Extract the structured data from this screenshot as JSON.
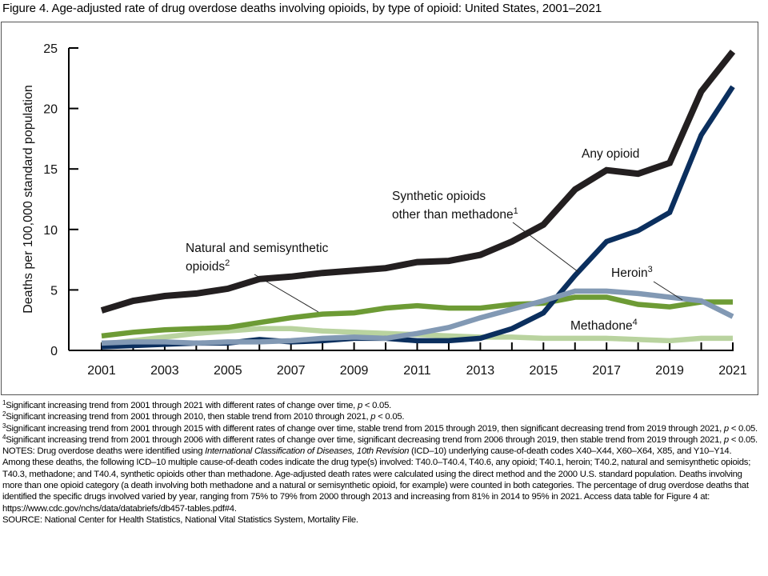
{
  "figure": {
    "title": "Figure 4. Age-adjusted rate of drug overdose deaths involving opioids, by type of opioid: United States, 2001–2021"
  },
  "chart_data": {
    "type": "line",
    "title": "Figure 4. Age-adjusted rate of drug overdose deaths involving opioids, by type of opioid: United States, 2001–2021",
    "xlabel": "",
    "ylabel": "Deaths per 100,000 standard population",
    "x": [
      2001,
      2002,
      2003,
      2004,
      2005,
      2006,
      2007,
      2008,
      2009,
      2010,
      2011,
      2012,
      2013,
      2014,
      2015,
      2016,
      2017,
      2018,
      2019,
      2020,
      2021
    ],
    "xlim": [
      2001,
      2021
    ],
    "ylim": [
      0,
      25
    ],
    "x_ticks": [
      2001,
      2003,
      2005,
      2007,
      2009,
      2011,
      2013,
      2015,
      2017,
      2019,
      2021
    ],
    "y_ticks": [
      0,
      5,
      10,
      15,
      20,
      25
    ],
    "grid": false,
    "legend": "none (direct labels)",
    "series": [
      {
        "id": "methadone",
        "name": "Methadone",
        "footnote": "4",
        "color": "#b9d39f",
        "values": [
          0.5,
          0.8,
          1.1,
          1.4,
          1.6,
          1.8,
          1.8,
          1.6,
          1.5,
          1.4,
          1.3,
          1.2,
          1.1,
          1.1,
          1.0,
          1.0,
          1.0,
          0.9,
          0.8,
          1.0,
          1.0
        ]
      },
      {
        "id": "natural",
        "name": "Natural and semisynthetic opioids",
        "footnote": "2",
        "color": "#6d9b35",
        "values": [
          1.2,
          1.5,
          1.7,
          1.8,
          1.9,
          2.3,
          2.7,
          3.0,
          3.1,
          3.5,
          3.7,
          3.5,
          3.5,
          3.8,
          3.9,
          4.4,
          4.4,
          3.8,
          3.6,
          4.0,
          4.0
        ]
      },
      {
        "id": "synthetic",
        "name": "Synthetic opioids other than methadone",
        "footnote": "1",
        "color": "#0b2f5e",
        "values": [
          0.3,
          0.4,
          0.5,
          0.6,
          0.6,
          0.9,
          0.7,
          0.8,
          1.0,
          1.0,
          0.8,
          0.8,
          1.0,
          1.8,
          3.1,
          6.2,
          9.0,
          9.9,
          11.4,
          17.8,
          21.8
        ]
      },
      {
        "id": "heroin",
        "name": "Heroin",
        "footnote": "3",
        "color": "#8299b4",
        "values": [
          0.6,
          0.7,
          0.7,
          0.6,
          0.7,
          0.7,
          0.8,
          1.0,
          1.1,
          1.0,
          1.4,
          1.9,
          2.7,
          3.4,
          4.1,
          4.9,
          4.9,
          4.7,
          4.4,
          4.1,
          2.8
        ]
      },
      {
        "id": "any",
        "name": "Any opioid",
        "footnote": "",
        "color": "#231f20",
        "values": [
          3.3,
          4.1,
          4.5,
          4.7,
          5.1,
          5.9,
          6.1,
          6.4,
          6.6,
          6.8,
          7.3,
          7.4,
          7.9,
          9.0,
          10.4,
          13.3,
          14.9,
          14.6,
          15.5,
          21.4,
          24.7
        ]
      }
    ],
    "annotations": [
      {
        "series": "any",
        "lines": [
          "Any opioid"
        ],
        "sup": ""
      },
      {
        "series": "synthetic",
        "lines": [
          "Synthetic opioids",
          "other than methadone"
        ],
        "sup": "1"
      },
      {
        "series": "natural",
        "lines": [
          "Natural and semisynthetic",
          "opioids"
        ],
        "sup": "2"
      },
      {
        "series": "heroin",
        "lines": [
          "Heroin"
        ],
        "sup": "3"
      },
      {
        "series": "methadone",
        "lines": [
          "Methadone"
        ],
        "sup": "4"
      }
    ]
  },
  "footnotes": [
    {
      "marker": "1",
      "text": "Significant increasing trend from 2001 through 2021 with different rates of change over time, ",
      "p_text": "p",
      "tail": " < 0.05."
    },
    {
      "marker": "2",
      "text": "Significant increasing trend from 2001 through 2010, then stable trend from 2010 through 2021, ",
      "p_text": "p",
      "tail": " < 0.05."
    },
    {
      "marker": "3",
      "text": "Significant increasing trend from 2001 through 2015 with different rates of change over time, stable trend from 2015 through 2019, then significant decreasing trend from 2019 through 2021, ",
      "p_text": "p",
      "tail": " < 0.05."
    },
    {
      "marker": "4",
      "text": "Significant increasing trend from 2001 through 2006 with different rates of change over time, significant decreasing trend from 2006 through 2019, then stable trend from 2019 through 2021, ",
      "p_text": "p",
      "tail": " < 0.05."
    }
  ],
  "notes": {
    "lead": "NOTES: Drug overdose deaths were identified using ",
    "italic": "International Classification of Diseases, 10th Revision",
    "rest": " (ICD–10) underlying cause-of-death codes X40–X44, X60–X64, X85, and Y10–Y14. Among these deaths, the following ICD–10 multiple cause-of-death codes indicate the drug type(s) involved: T40.0–T40.4, T40.6, any opioid; T40.1, heroin; T40.2, natural and semisynthetic opioids; T40.3, methadone; and T40.4, synthetic opioids other than methadone. Age-adjusted death rates were calculated using the direct method and the 2000 U.S. standard population. Deaths involving more than one opioid category (a death involving both methadone and a natural or semisynthetic opioid, for example) were counted in both categories. The percentage of drug overdose deaths that identified the specific drugs involved varied by year, ranging from 75% to 79% from 2000 through 2013 and increasing from 81% in 2014 to 95% in 2021. Access data table for Figure 4 at: https://www.cdc.gov/nchs/data/databriefs/db457-tables.pdf#4."
  },
  "source": "SOURCE: National Center for Health Statistics, National Vital Statistics System, Mortality File."
}
